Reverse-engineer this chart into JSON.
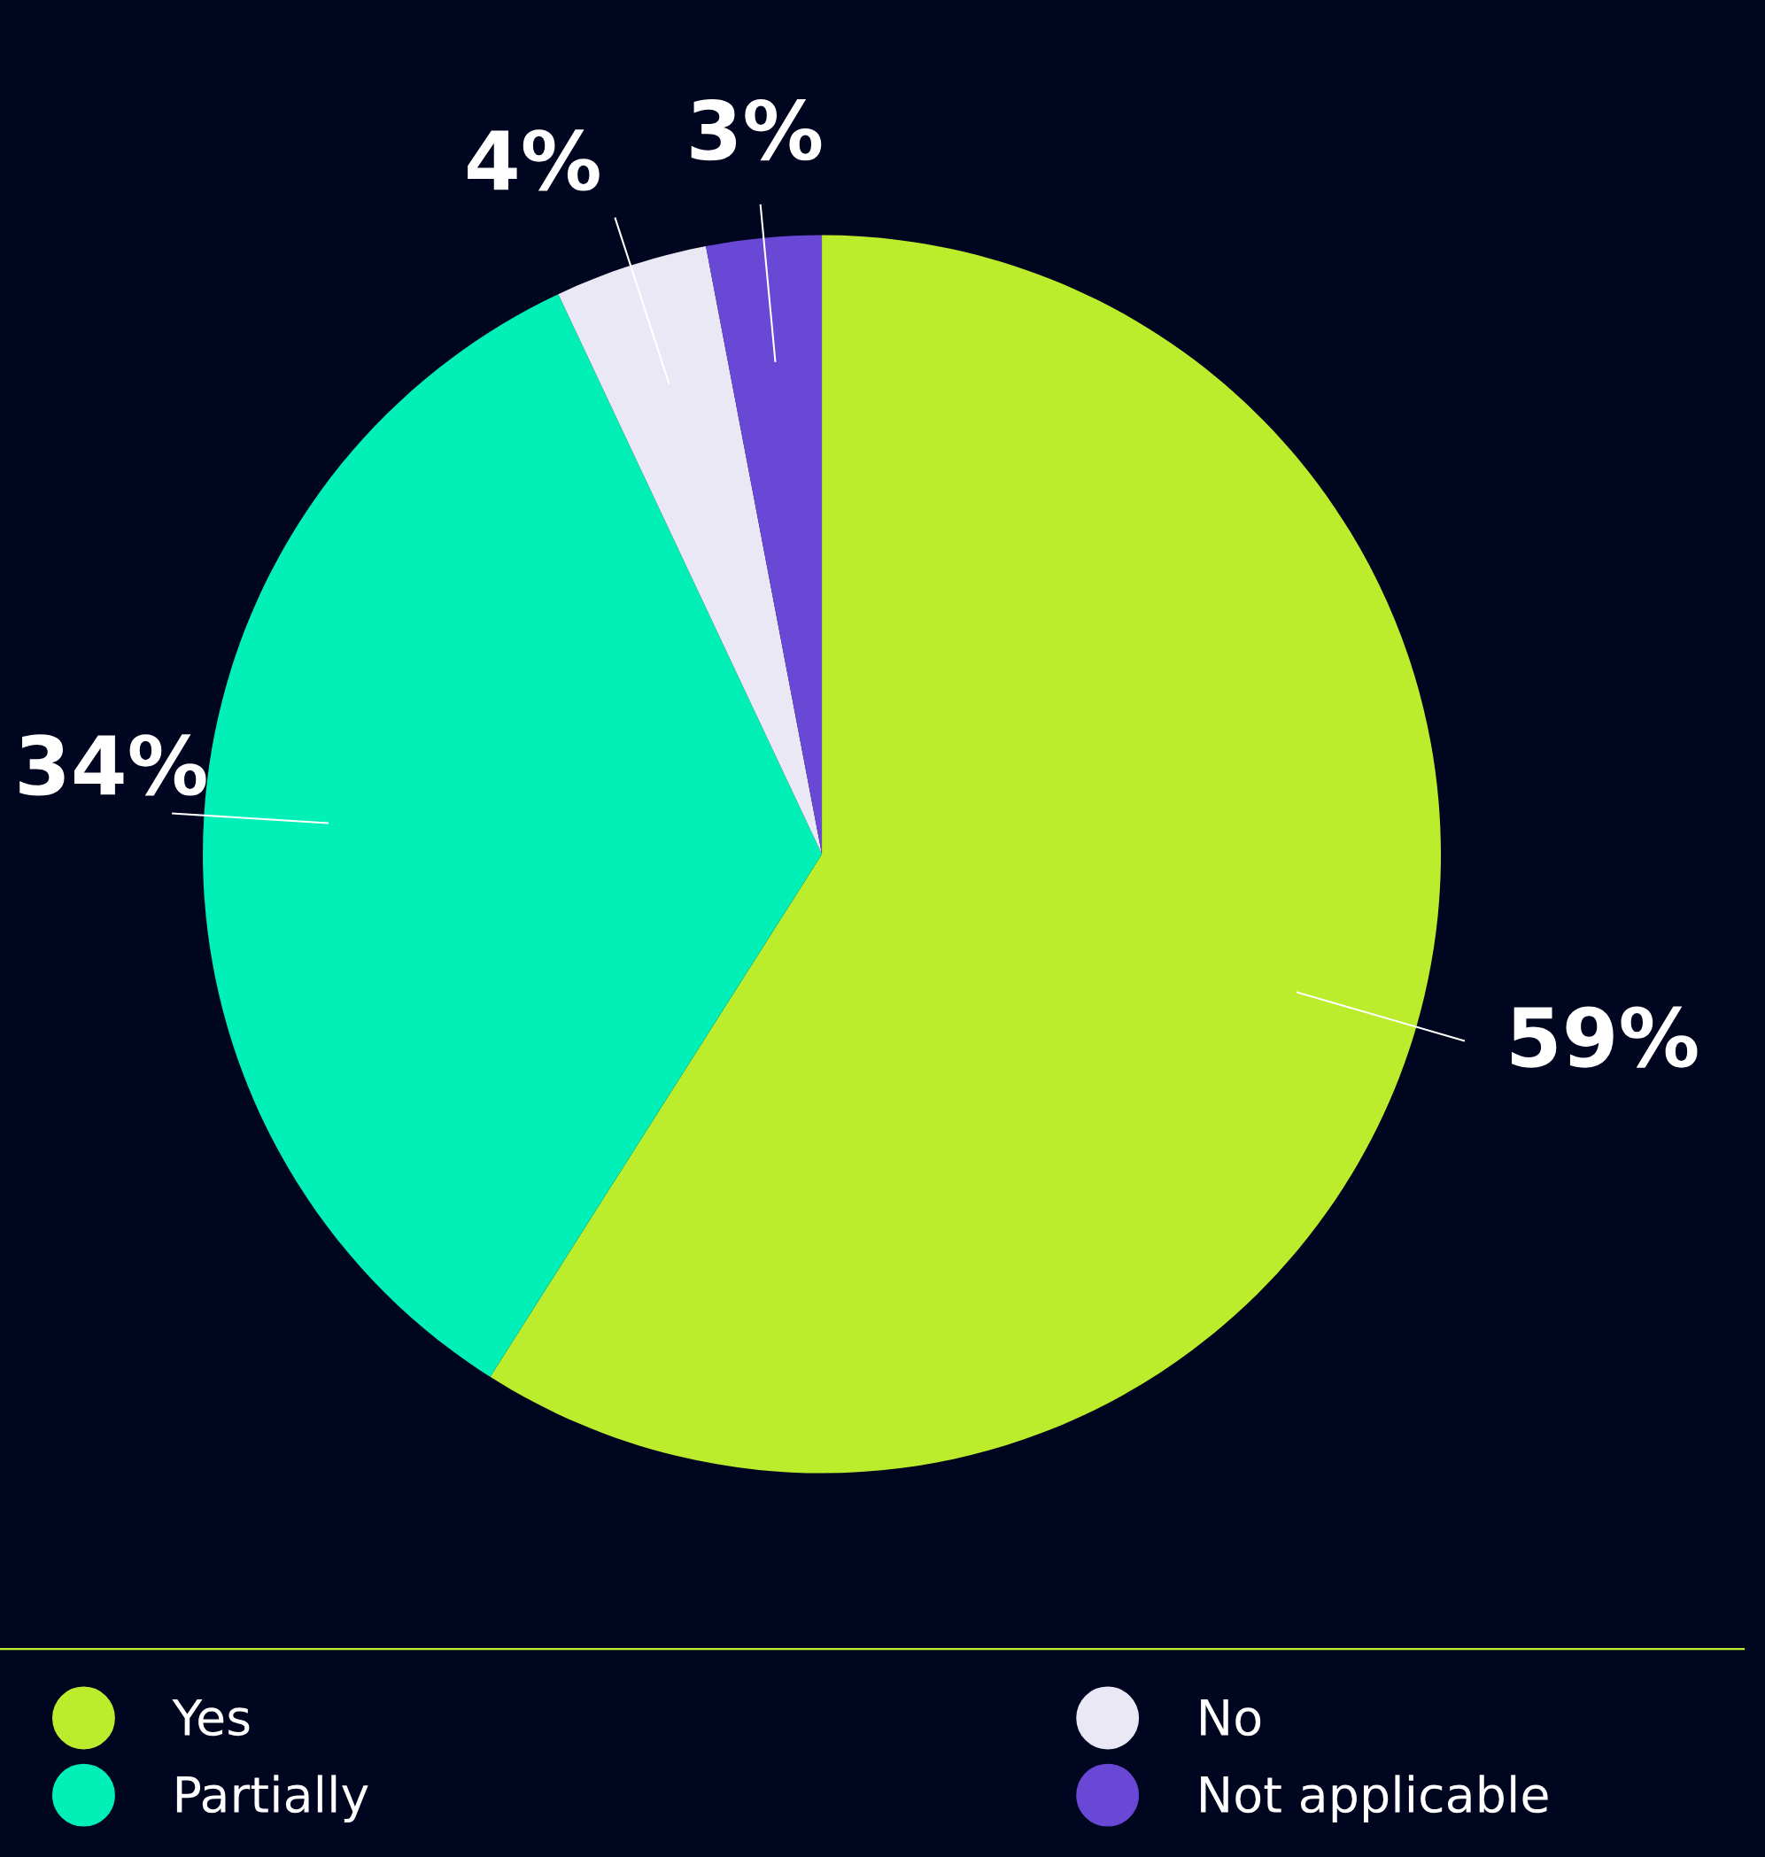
{
  "chart_data": {
    "type": "pie",
    "categories": [
      "Yes",
      "Partially",
      "No",
      "Not applicable"
    ],
    "values": [
      59,
      34,
      4,
      3
    ],
    "colors": [
      "#bbed2d",
      "#00f0b8",
      "#ebe8f5",
      "#6a48d6"
    ],
    "value_labels": [
      "59%",
      "34%",
      "4%",
      "3%"
    ],
    "legend": "bottom"
  }
}
